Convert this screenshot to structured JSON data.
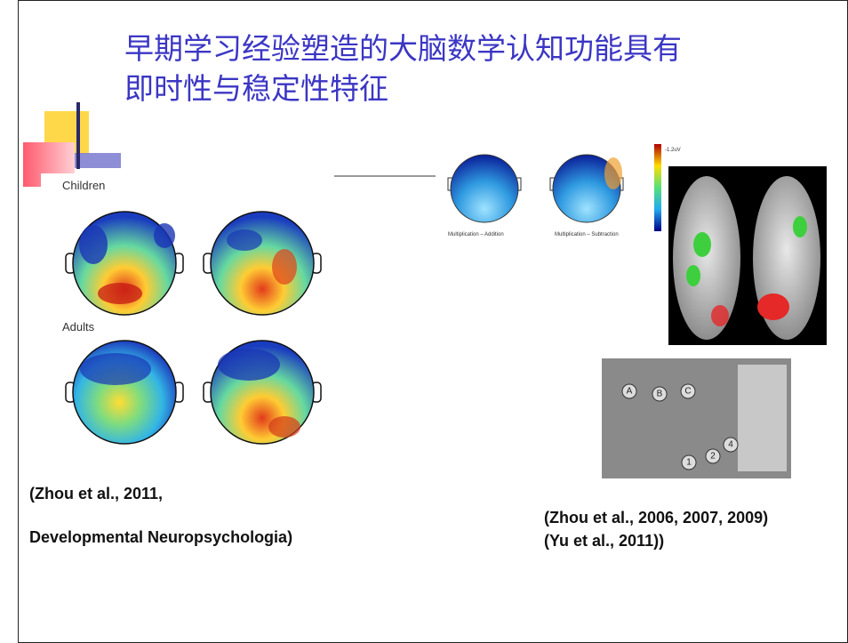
{
  "slide": {
    "title": [
      "早期学习经验塑造的大脑数学认知功能具有",
      "即时性与稳定性特征"
    ],
    "figures": {
      "children_label": "Children",
      "adults_label": "Adults",
      "erp_labels": [
        "Multiplication – Addition",
        "Multiplication – Subtraction"
      ],
      "scale_label": "-1.2uV",
      "electrode_labels": [
        "A",
        "B",
        "C",
        "1",
        "2",
        "4"
      ]
    },
    "citations": {
      "left": [
        "(Zhou et al., 2011,",
        "Developmental Neuropsychologia)"
      ],
      "right": [
        "(Zhou et al., 2006, 2007, 2009)",
        "(Yu et al., 2011))"
      ]
    }
  }
}
